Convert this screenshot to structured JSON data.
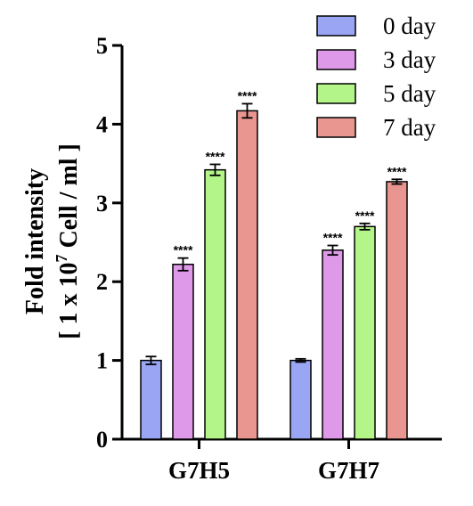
{
  "chart_data": {
    "type": "bar",
    "categories": [
      "G7H5",
      "G7H7"
    ],
    "ylabel_line1": "Fold intensity",
    "ylabel_line2_prefix": "[ 1 x 10",
    "ylabel_line2_sup": "7",
    "ylabel_line2_suffix": " Cell / ml ]",
    "ylim": [
      0,
      5
    ],
    "yticks": [
      "0",
      "1",
      "2",
      "3",
      "4",
      "5"
    ],
    "legend_position": "top-right",
    "series": [
      {
        "name": "0 day",
        "color": "#9aa6f3",
        "values": [
          1.0,
          1.0
        ],
        "errors": [
          0.05,
          0.02
        ],
        "labels": [
          "",
          ""
        ]
      },
      {
        "name": "3 day",
        "color": "#de9ae8",
        "values": [
          2.22,
          2.4
        ],
        "errors": [
          0.08,
          0.06
        ],
        "labels": [
          "****",
          "****"
        ]
      },
      {
        "name": "5 day",
        "color": "#b4f58a",
        "values": [
          3.42,
          2.7
        ],
        "errors": [
          0.07,
          0.04
        ],
        "labels": [
          "****",
          "****"
        ]
      },
      {
        "name": "7 day",
        "color": "#e99590",
        "values": [
          4.17,
          3.27
        ],
        "errors": [
          0.09,
          0.03
        ],
        "labels": [
          "****",
          "****"
        ]
      }
    ]
  }
}
